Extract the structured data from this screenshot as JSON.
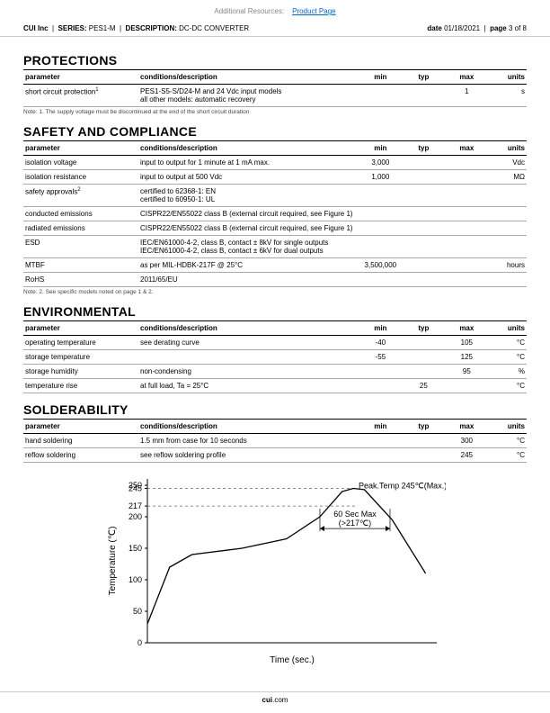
{
  "top": {
    "resources_label": "Additional Resources:",
    "link_text": "Product Page"
  },
  "header": {
    "company": "CUI Inc",
    "series_label": "SERIES:",
    "series": "PES1-M",
    "desc_label": "DESCRIPTION:",
    "desc": "DC-DC CONVERTER",
    "date_label": "date",
    "date": "01/18/2021",
    "page_label": "page",
    "page": "3 of 8"
  },
  "protections": {
    "title": "PROTECTIONS",
    "headers": [
      "parameter",
      "conditions/description",
      "min",
      "typ",
      "max",
      "units"
    ],
    "rows": [
      {
        "param": "short circuit protection",
        "sup": "1",
        "cond": "PES1-S5-S/D24-M and 24 Vdc input models\nall other models: automatic recovery",
        "min": "",
        "typ": "",
        "max": "1",
        "units": "s"
      }
    ],
    "note": "Note:      1. The supply voltage must be discontinued at the end of the short circuit duration"
  },
  "safety": {
    "title": "SAFETY AND COMPLIANCE",
    "headers": [
      "parameter",
      "conditions/description",
      "min",
      "typ",
      "max",
      "units"
    ],
    "rows": [
      {
        "param": "isolation voltage",
        "cond": "input to output for 1 minute at 1 mA max.",
        "min": "3,000",
        "typ": "",
        "max": "",
        "units": "Vdc"
      },
      {
        "param": "isolation resistance",
        "cond": "input to output at 500 Vdc",
        "min": "1,000",
        "typ": "",
        "max": "",
        "units": "MΩ"
      },
      {
        "param": "safety approvals",
        "sup": "2",
        "cond": "certified to 62368-1: EN\ncertified to 60950-1: UL",
        "min": "",
        "typ": "",
        "max": "",
        "units": ""
      },
      {
        "param": "conducted emissions",
        "cond": "CISPR22/EN55022 class B (external circuit required, see Figure 1)",
        "min": "",
        "typ": "",
        "max": "",
        "units": ""
      },
      {
        "param": "radiated emissions",
        "cond": "CISPR22/EN55022 class B (external circuit required, see Figure 1)",
        "min": "",
        "typ": "",
        "max": "",
        "units": ""
      },
      {
        "param": "ESD",
        "cond": "IEC/EN61000-4-2, class B, contact ± 8kV for single outputs\nIEC/EN61000-4-2, class B, contact ± 6kV for dual outputs",
        "min": "",
        "typ": "",
        "max": "",
        "units": ""
      },
      {
        "param": "MTBF",
        "cond": "as per MIL-HDBK-217F @ 25°C",
        "min": "3,500,000",
        "typ": "",
        "max": "",
        "units": "hours"
      },
      {
        "param": "RoHS",
        "cond": "2011/65/EU",
        "min": "",
        "typ": "",
        "max": "",
        "units": ""
      }
    ],
    "note": "Note:      2. See specific models noted on page 1 & 2."
  },
  "environmental": {
    "title": "ENVIRONMENTAL",
    "headers": [
      "parameter",
      "conditions/description",
      "min",
      "typ",
      "max",
      "units"
    ],
    "rows": [
      {
        "param": "operating temperature",
        "cond": "see derating curve",
        "min": "-40",
        "typ": "",
        "max": "105",
        "units": "°C"
      },
      {
        "param": "storage temperature",
        "cond": "",
        "min": "-55",
        "typ": "",
        "max": "125",
        "units": "°C"
      },
      {
        "param": "storage humidity",
        "cond": "non-condensing",
        "min": "",
        "typ": "",
        "max": "95",
        "units": "%"
      },
      {
        "param": "temperature rise",
        "cond": "at full load, Ta = 25°C",
        "min": "",
        "typ": "25",
        "max": "",
        "units": "°C"
      }
    ]
  },
  "solderability": {
    "title": "SOLDERABILITY",
    "headers": [
      "parameter",
      "conditions/description",
      "min",
      "typ",
      "max",
      "units"
    ],
    "rows": [
      {
        "param": "hand soldering",
        "cond": "1.5 mm from case for 10 seconds",
        "min": "",
        "typ": "",
        "max": "300",
        "units": "°C"
      },
      {
        "param": "reflow soldering",
        "cond": "see reflow soldering profile",
        "min": "",
        "typ": "",
        "max": "245",
        "units": "°C"
      }
    ]
  },
  "chart": {
    "type": "line",
    "xlabel": "Time (sec.)",
    "ylabel": "Temperature (℃)",
    "yticks": [
      0,
      50,
      100,
      150,
      200,
      217,
      245,
      250
    ],
    "ylim": [
      0,
      260
    ],
    "annotation_peak": "Peak.Temp 245℃(Max.)",
    "annotation_60sec": "60 Sec Max\n(>217℃)",
    "line_color": "#000000",
    "dash_color": "#666666",
    "axis_color": "#000000",
    "text_color": "#000000",
    "fontsize_axis": 9,
    "fontsize_annot": 9,
    "curve_pts": [
      [
        0,
        30
      ],
      [
        20,
        120
      ],
      [
        40,
        140
      ],
      [
        85,
        150
      ],
      [
        125,
        165
      ],
      [
        155,
        200
      ],
      [
        175,
        240
      ],
      [
        185,
        245
      ],
      [
        195,
        243
      ],
      [
        220,
        195
      ],
      [
        250,
        110
      ]
    ]
  },
  "footer": {
    "brand_bold": "cui",
    "brand_rest": ".com"
  }
}
